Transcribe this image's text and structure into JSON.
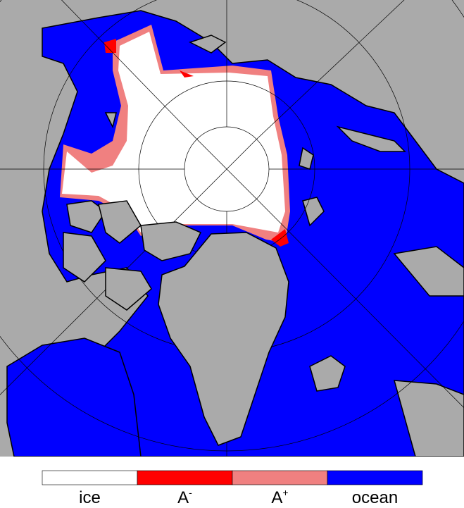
{
  "legend": {
    "items": [
      {
        "label": "ice",
        "color": "#ffffff"
      },
      {
        "label": "A",
        "sup": "-",
        "color": "#ff0000"
      },
      {
        "label": "A",
        "sup": "+",
        "color": "#f08080"
      },
      {
        "label": "ocean",
        "color": "#0000ff"
      }
    ]
  }
}
